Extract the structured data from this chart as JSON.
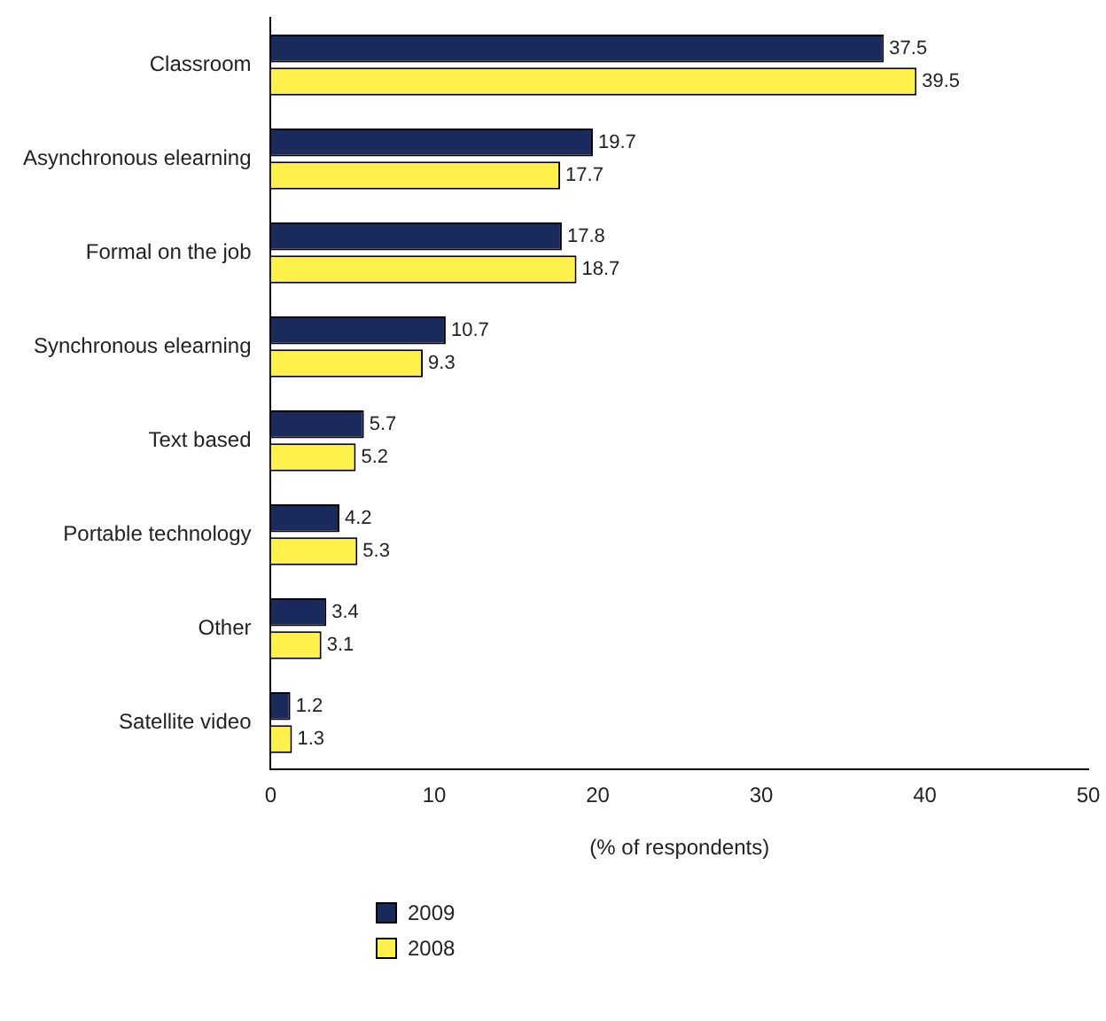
{
  "chart_data": {
    "type": "bar",
    "orientation": "horizontal",
    "xlabel": "(% of respondents)",
    "categories": [
      "Classroom",
      "Asynchronous elearning",
      "Formal on the job",
      "Synchronous elearning",
      "Text based",
      "Portable technology",
      "Other",
      "Satellite video"
    ],
    "series": [
      {
        "name": "2009",
        "color": "#1b2a5c",
        "values": [
          37.5,
          19.7,
          17.8,
          10.7,
          5.7,
          4.2,
          3.4,
          1.2
        ]
      },
      {
        "name": "2008",
        "color": "#fff04a",
        "values": [
          39.5,
          17.7,
          18.7,
          9.3,
          5.2,
          5.3,
          3.1,
          1.3
        ]
      }
    ],
    "xlim": [
      0,
      50
    ],
    "xticks": [
      0,
      10,
      20,
      30,
      40,
      50
    ],
    "grid": false,
    "data_labels": true,
    "legend": "bottom left"
  }
}
